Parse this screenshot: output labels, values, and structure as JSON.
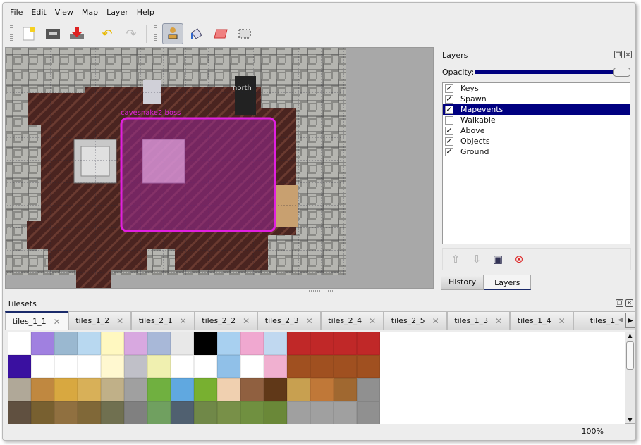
{
  "menu": [
    "File",
    "Edit",
    "View",
    "Map",
    "Layer",
    "Help"
  ],
  "toolbar": {
    "icons": [
      "new-file-icon",
      "open-icon",
      "save-icon",
      "undo-icon",
      "redo-icon",
      "stamp-brush-icon",
      "bucket-fill-icon",
      "eraser-icon",
      "rectangle-select-icon"
    ],
    "active": "stamp-brush-icon"
  },
  "map": {
    "labels": {
      "north": "north",
      "event": "cavesnake2 boss"
    },
    "selection_color": "#e020e0"
  },
  "layers_dock": {
    "title": "Layers",
    "opacity_label": "Opacity:",
    "opacity": 100,
    "layers": [
      {
        "name": "Keys",
        "visible": true
      },
      {
        "name": "Spawn",
        "visible": true
      },
      {
        "name": "Mapevents",
        "visible": true,
        "selected": true
      },
      {
        "name": "Walkable",
        "visible": false
      },
      {
        "name": "Above",
        "visible": true
      },
      {
        "name": "Objects",
        "visible": true
      },
      {
        "name": "Ground",
        "visible": true
      }
    ],
    "tabs": [
      "History",
      "Layers"
    ],
    "active_tab": "Layers"
  },
  "tilesets": {
    "title": "Tilesets",
    "tabs": [
      "tiles_1_1",
      "tiles_1_2",
      "tiles_2_1",
      "tiles_2_2",
      "tiles_2_3",
      "tiles_2_4",
      "tiles_2_5",
      "tiles_1_3",
      "tiles_1_4",
      "tiles_1_"
    ],
    "active_tab": "tiles_1_1"
  },
  "status": {
    "zoom": "100%"
  }
}
